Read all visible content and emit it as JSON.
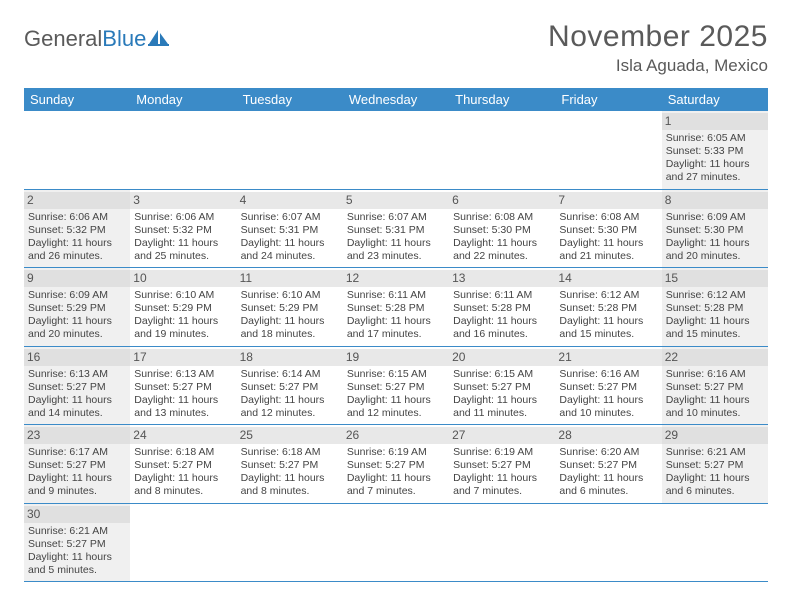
{
  "logo": {
    "text1": "General",
    "text2": "Blue"
  },
  "title": "November 2025",
  "location": "Isla Aguada, Mexico",
  "colors": {
    "header_bg": "#3b8bc8",
    "header_text": "#ffffff",
    "row_border": "#3b8bc8",
    "shade_bg": "#f0f0f0",
    "daynum_bg": "#e8e8e8",
    "text": "#444444",
    "title_text": "#5a5a5a"
  },
  "day_labels": [
    "Sunday",
    "Monday",
    "Tuesday",
    "Wednesday",
    "Thursday",
    "Friday",
    "Saturday"
  ],
  "weeks": [
    [
      {
        "empty": true
      },
      {
        "empty": true
      },
      {
        "empty": true
      },
      {
        "empty": true
      },
      {
        "empty": true
      },
      {
        "empty": true
      },
      {
        "n": "1",
        "sr": "Sunrise: 6:05 AM",
        "ss": "Sunset: 5:33 PM",
        "d1": "Daylight: 11 hours",
        "d2": "and 27 minutes."
      }
    ],
    [
      {
        "n": "2",
        "sr": "Sunrise: 6:06 AM",
        "ss": "Sunset: 5:32 PM",
        "d1": "Daylight: 11 hours",
        "d2": "and 26 minutes."
      },
      {
        "n": "3",
        "sr": "Sunrise: 6:06 AM",
        "ss": "Sunset: 5:32 PM",
        "d1": "Daylight: 11 hours",
        "d2": "and 25 minutes."
      },
      {
        "n": "4",
        "sr": "Sunrise: 6:07 AM",
        "ss": "Sunset: 5:31 PM",
        "d1": "Daylight: 11 hours",
        "d2": "and 24 minutes."
      },
      {
        "n": "5",
        "sr": "Sunrise: 6:07 AM",
        "ss": "Sunset: 5:31 PM",
        "d1": "Daylight: 11 hours",
        "d2": "and 23 minutes."
      },
      {
        "n": "6",
        "sr": "Sunrise: 6:08 AM",
        "ss": "Sunset: 5:30 PM",
        "d1": "Daylight: 11 hours",
        "d2": "and 22 minutes."
      },
      {
        "n": "7",
        "sr": "Sunrise: 6:08 AM",
        "ss": "Sunset: 5:30 PM",
        "d1": "Daylight: 11 hours",
        "d2": "and 21 minutes."
      },
      {
        "n": "8",
        "sr": "Sunrise: 6:09 AM",
        "ss": "Sunset: 5:30 PM",
        "d1": "Daylight: 11 hours",
        "d2": "and 20 minutes."
      }
    ],
    [
      {
        "n": "9",
        "sr": "Sunrise: 6:09 AM",
        "ss": "Sunset: 5:29 PM",
        "d1": "Daylight: 11 hours",
        "d2": "and 20 minutes."
      },
      {
        "n": "10",
        "sr": "Sunrise: 6:10 AM",
        "ss": "Sunset: 5:29 PM",
        "d1": "Daylight: 11 hours",
        "d2": "and 19 minutes."
      },
      {
        "n": "11",
        "sr": "Sunrise: 6:10 AM",
        "ss": "Sunset: 5:29 PM",
        "d1": "Daylight: 11 hours",
        "d2": "and 18 minutes."
      },
      {
        "n": "12",
        "sr": "Sunrise: 6:11 AM",
        "ss": "Sunset: 5:28 PM",
        "d1": "Daylight: 11 hours",
        "d2": "and 17 minutes."
      },
      {
        "n": "13",
        "sr": "Sunrise: 6:11 AM",
        "ss": "Sunset: 5:28 PM",
        "d1": "Daylight: 11 hours",
        "d2": "and 16 minutes."
      },
      {
        "n": "14",
        "sr": "Sunrise: 6:12 AM",
        "ss": "Sunset: 5:28 PM",
        "d1": "Daylight: 11 hours",
        "d2": "and 15 minutes."
      },
      {
        "n": "15",
        "sr": "Sunrise: 6:12 AM",
        "ss": "Sunset: 5:28 PM",
        "d1": "Daylight: 11 hours",
        "d2": "and 15 minutes."
      }
    ],
    [
      {
        "n": "16",
        "sr": "Sunrise: 6:13 AM",
        "ss": "Sunset: 5:27 PM",
        "d1": "Daylight: 11 hours",
        "d2": "and 14 minutes."
      },
      {
        "n": "17",
        "sr": "Sunrise: 6:13 AM",
        "ss": "Sunset: 5:27 PM",
        "d1": "Daylight: 11 hours",
        "d2": "and 13 minutes."
      },
      {
        "n": "18",
        "sr": "Sunrise: 6:14 AM",
        "ss": "Sunset: 5:27 PM",
        "d1": "Daylight: 11 hours",
        "d2": "and 12 minutes."
      },
      {
        "n": "19",
        "sr": "Sunrise: 6:15 AM",
        "ss": "Sunset: 5:27 PM",
        "d1": "Daylight: 11 hours",
        "d2": "and 12 minutes."
      },
      {
        "n": "20",
        "sr": "Sunrise: 6:15 AM",
        "ss": "Sunset: 5:27 PM",
        "d1": "Daylight: 11 hours",
        "d2": "and 11 minutes."
      },
      {
        "n": "21",
        "sr": "Sunrise: 6:16 AM",
        "ss": "Sunset: 5:27 PM",
        "d1": "Daylight: 11 hours",
        "d2": "and 10 minutes."
      },
      {
        "n": "22",
        "sr": "Sunrise: 6:16 AM",
        "ss": "Sunset: 5:27 PM",
        "d1": "Daylight: 11 hours",
        "d2": "and 10 minutes."
      }
    ],
    [
      {
        "n": "23",
        "sr": "Sunrise: 6:17 AM",
        "ss": "Sunset: 5:27 PM",
        "d1": "Daylight: 11 hours",
        "d2": "and 9 minutes."
      },
      {
        "n": "24",
        "sr": "Sunrise: 6:18 AM",
        "ss": "Sunset: 5:27 PM",
        "d1": "Daylight: 11 hours",
        "d2": "and 8 minutes."
      },
      {
        "n": "25",
        "sr": "Sunrise: 6:18 AM",
        "ss": "Sunset: 5:27 PM",
        "d1": "Daylight: 11 hours",
        "d2": "and 8 minutes."
      },
      {
        "n": "26",
        "sr": "Sunrise: 6:19 AM",
        "ss": "Sunset: 5:27 PM",
        "d1": "Daylight: 11 hours",
        "d2": "and 7 minutes."
      },
      {
        "n": "27",
        "sr": "Sunrise: 6:19 AM",
        "ss": "Sunset: 5:27 PM",
        "d1": "Daylight: 11 hours",
        "d2": "and 7 minutes."
      },
      {
        "n": "28",
        "sr": "Sunrise: 6:20 AM",
        "ss": "Sunset: 5:27 PM",
        "d1": "Daylight: 11 hours",
        "d2": "and 6 minutes."
      },
      {
        "n": "29",
        "sr": "Sunrise: 6:21 AM",
        "ss": "Sunset: 5:27 PM",
        "d1": "Daylight: 11 hours",
        "d2": "and 6 minutes."
      }
    ],
    [
      {
        "n": "30",
        "sr": "Sunrise: 6:21 AM",
        "ss": "Sunset: 5:27 PM",
        "d1": "Daylight: 11 hours",
        "d2": "and 5 minutes."
      },
      {
        "empty": true
      },
      {
        "empty": true
      },
      {
        "empty": true
      },
      {
        "empty": true
      },
      {
        "empty": true
      },
      {
        "empty": true
      }
    ]
  ]
}
